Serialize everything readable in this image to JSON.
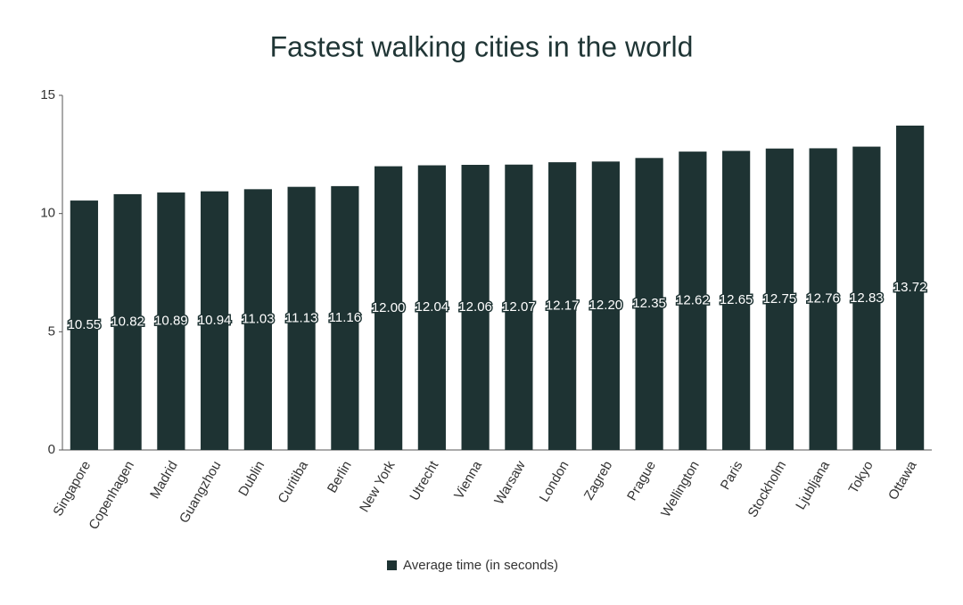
{
  "chart_data": {
    "type": "bar",
    "title": "Fastest walking cities in the world",
    "categories": [
      "Singapore",
      "Copenhagen",
      "Madrid",
      "Guangzhou",
      "Dublin",
      "Curitiba",
      "Berlin",
      "New York",
      "Utrecht",
      "Vienna",
      "Warsaw",
      "London",
      "Zagreb",
      "Prague",
      "Wellington",
      "Paris",
      "Stockholm",
      "Ljubljana",
      "Tokyo",
      "Ottawa"
    ],
    "series": [
      {
        "name": "Average time (in seconds)",
        "color": "#1e3333",
        "values": [
          10.55,
          10.82,
          10.89,
          10.94,
          11.03,
          11.13,
          11.16,
          12.0,
          12.04,
          12.06,
          12.07,
          12.17,
          12.2,
          12.35,
          12.62,
          12.65,
          12.75,
          12.76,
          12.83,
          13.72
        ],
        "value_labels": [
          "10.55",
          "10.82",
          "10.89",
          "10.94",
          "11.03",
          "11.13",
          "11.16",
          "12.00",
          "12.04",
          "12.06",
          "12.07",
          "12.17",
          "12.20",
          "12.35",
          "12.62",
          "12.65",
          "12.75",
          "12.76",
          "12.83",
          "13.72"
        ]
      }
    ],
    "ylim": [
      0,
      15
    ],
    "yticks": [
      0,
      5,
      10,
      15
    ],
    "grid": false,
    "legend": "bottom"
  }
}
